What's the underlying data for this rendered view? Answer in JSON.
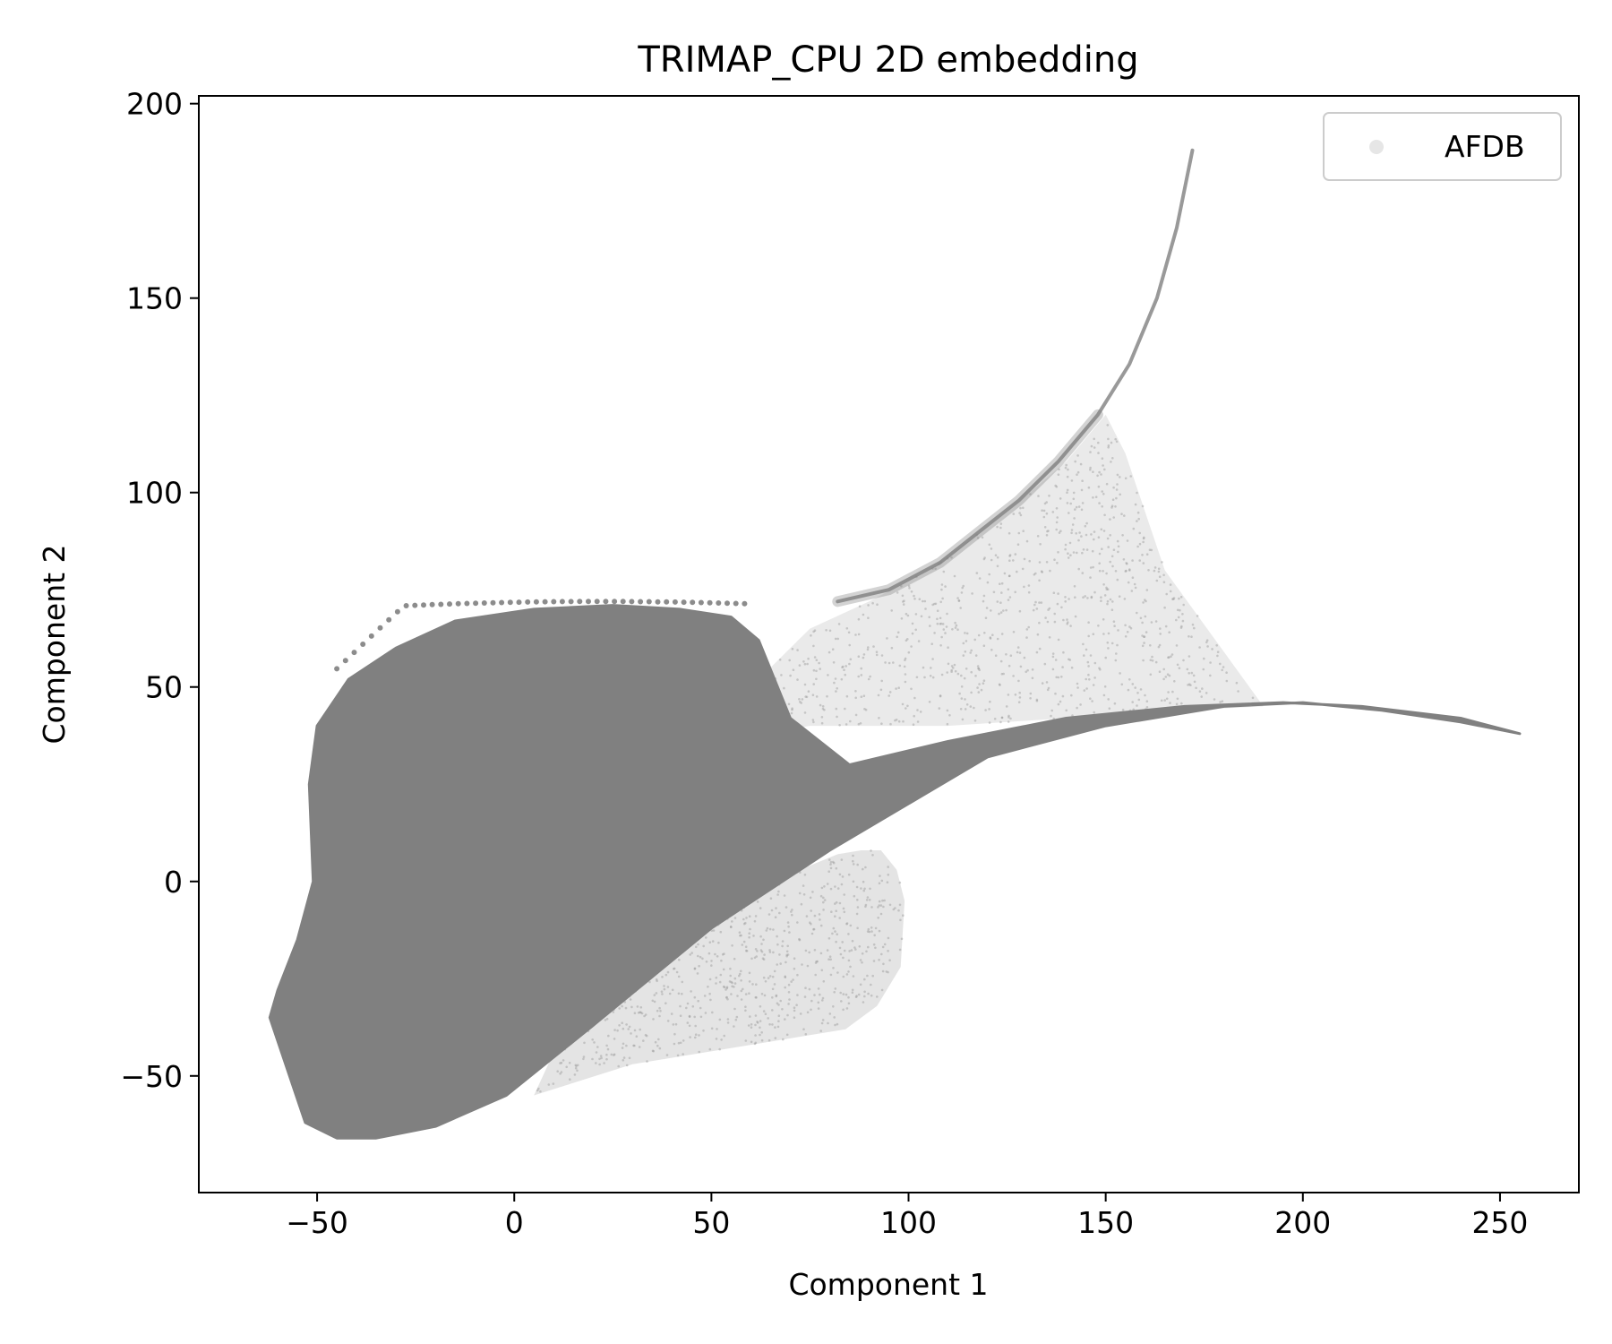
{
  "chart_data": {
    "type": "scatter",
    "title": "TRIMAP_CPU 2D embedding",
    "xlabel": "Component 1",
    "ylabel": "Component 2",
    "xlim": [
      -80,
      270
    ],
    "ylim": [
      -80,
      202
    ],
    "xticks": [
      -50,
      0,
      50,
      100,
      150,
      200,
      250
    ],
    "yticks": [
      -50,
      0,
      50,
      100,
      150,
      200
    ],
    "xtick_labels": [
      "−50",
      "0",
      "50",
      "100",
      "150",
      "200",
      "250"
    ],
    "ytick_labels": [
      "−50",
      "0",
      "50",
      "100",
      "150",
      "200"
    ],
    "grid": false,
    "legend": {
      "position": "top-right",
      "entries": [
        "AFDB"
      ]
    },
    "series": [
      {
        "name": "AFDB",
        "color": "#808080",
        "regions": {
          "dense_main": [
            [
              -62,
              -35
            ],
            [
              -58,
              -47
            ],
            [
              -53,
              -62
            ],
            [
              -45,
              -66
            ],
            [
              -35,
              -66
            ],
            [
              -20,
              -63
            ],
            [
              -2,
              -55
            ],
            [
              20,
              -37
            ],
            [
              50,
              -12
            ],
            [
              80,
              8
            ],
            [
              100,
              20
            ],
            [
              120,
              32
            ],
            [
              150,
              40
            ],
            [
              180,
              45
            ],
            [
              200,
              46
            ],
            [
              220,
              44
            ],
            [
              240,
              41
            ],
            [
              255,
              38
            ],
            [
              240,
              42
            ],
            [
              215,
              45
            ],
            [
              195,
              46
            ],
            [
              170,
              45
            ],
            [
              140,
              42
            ],
            [
              110,
              36
            ],
            [
              85,
              30
            ],
            [
              70,
              42
            ],
            [
              66,
              52
            ],
            [
              62,
              62
            ],
            [
              55,
              68
            ],
            [
              42,
              70
            ],
            [
              25,
              71
            ],
            [
              5,
              70
            ],
            [
              -15,
              67
            ],
            [
              -30,
              60
            ],
            [
              -42,
              52
            ],
            [
              -50,
              40
            ],
            [
              -52,
              25
            ],
            [
              -51,
              0
            ],
            [
              -55,
              -15
            ],
            [
              -60,
              -28
            ]
          ],
          "sparse_lower": [
            [
              5,
              -55
            ],
            [
              30,
              -47
            ],
            [
              60,
              -42
            ],
            [
              84,
              -38
            ],
            [
              92,
              -32
            ],
            [
              98,
              -22
            ],
            [
              99,
              -5
            ],
            [
              97,
              3
            ],
            [
              93,
              8
            ],
            [
              88,
              8
            ],
            [
              82,
              7
            ],
            [
              70,
              2
            ],
            [
              52,
              -8
            ],
            [
              32,
              -20
            ],
            [
              15,
              -33
            ]
          ],
          "sparse_upper_fan": [
            [
              62,
              38
            ],
            [
              75,
              40
            ],
            [
              110,
              40
            ],
            [
              140,
              42
            ],
            [
              170,
              44
            ],
            [
              190,
              45
            ],
            [
              165,
              80
            ],
            [
              155,
              110
            ],
            [
              150,
              120
            ],
            [
              140,
              108
            ],
            [
              125,
              95
            ],
            [
              105,
              80
            ],
            [
              90,
              72
            ],
            [
              75,
              65
            ],
            [
              62,
              52
            ]
          ],
          "arm": [
            [
              82,
              72
            ],
            [
              95,
              75
            ],
            [
              108,
              82
            ],
            [
              118,
              90
            ],
            [
              128,
              98
            ],
            [
              138,
              108
            ],
            [
              148,
              120
            ],
            [
              156,
              133
            ],
            [
              163,
              150
            ],
            [
              168,
              168
            ],
            [
              172,
              188
            ]
          ]
        }
      }
    ]
  }
}
